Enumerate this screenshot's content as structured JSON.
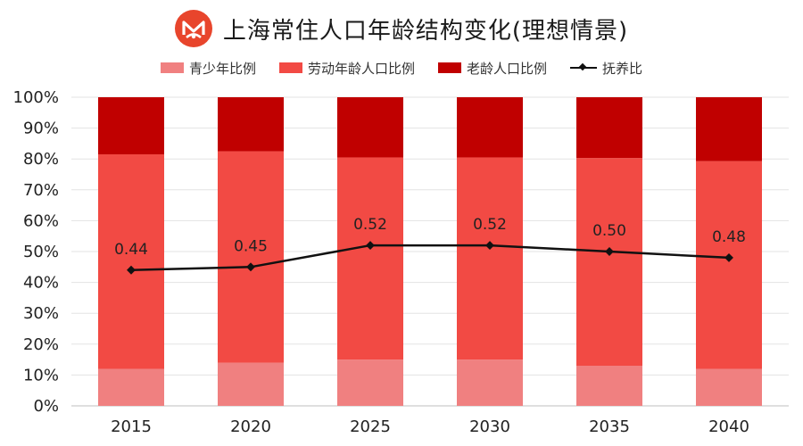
{
  "header": {
    "title": "上海常住人口年龄结构变化(理想情景)"
  },
  "chart_data": {
    "type": "bar",
    "stacked": true,
    "title": "上海常住人口年龄结构变化(理想情景)",
    "categories": [
      "2015",
      "2020",
      "2025",
      "2030",
      "2035",
      "2040"
    ],
    "series": [
      {
        "name": "青少年比例",
        "values": [
          12,
          14,
          15,
          15,
          13,
          12
        ],
        "color": "#f08080"
      },
      {
        "name": "劳动年龄人口比例",
        "values": [
          69.5,
          68.5,
          65.5,
          65.5,
          67.3,
          67.3
        ],
        "color": "#f24a44"
      },
      {
        "name": "老龄人口比例",
        "values": [
          18.5,
          17.5,
          19.5,
          19.5,
          19.7,
          20.7
        ],
        "color": "#c00000"
      }
    ],
    "line_series": {
      "name": "抚养比",
      "values": [
        0.44,
        0.45,
        0.52,
        0.52,
        0.5,
        0.48
      ],
      "labels": [
        "0.44",
        "0.45",
        "0.52",
        "0.52",
        "0.50",
        "0.48"
      ],
      "color": "#111111"
    },
    "y_ticks": [
      "0%",
      "10%",
      "20%",
      "30%",
      "40%",
      "50%",
      "60%",
      "70%",
      "80%",
      "90%",
      "100%"
    ],
    "ylim": [
      0,
      100
    ],
    "grid": true,
    "legend": "top"
  }
}
